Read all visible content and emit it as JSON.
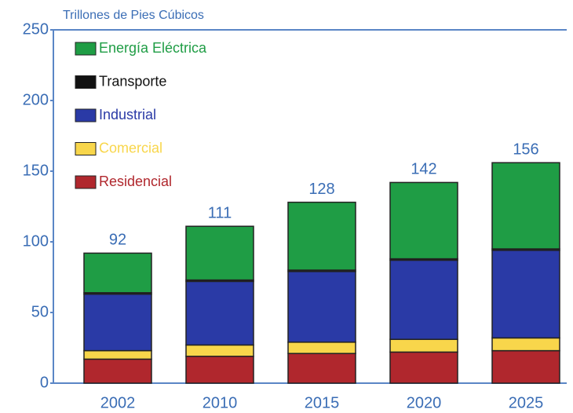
{
  "chart_data": {
    "type": "stacked_bar",
    "y_label": "Trillones de Pies Cúbicos",
    "categories": [
      "2002",
      "2010",
      "2015",
      "2020",
      "2025"
    ],
    "series": [
      {
        "name": "Residencial",
        "color": "#b0272d",
        "values": [
          17,
          19,
          21,
          22,
          23
        ]
      },
      {
        "name": "Comercial",
        "color": "#f8d64b",
        "values": [
          6,
          8,
          8,
          9,
          9
        ]
      },
      {
        "name": "Industrial",
        "color": "#2a3aa6",
        "values": [
          40,
          45,
          50,
          56,
          62
        ]
      },
      {
        "name": "Transporte",
        "color": "#111111",
        "values": [
          1,
          1,
          1,
          1,
          1
        ]
      },
      {
        "name": "Energía Eléctrica",
        "color": "#1f9d45",
        "values": [
          28,
          38,
          48,
          54,
          61
        ]
      }
    ],
    "totals": [
      92,
      111,
      128,
      142,
      156
    ],
    "ylim": [
      0,
      250
    ],
    "yticks": [
      0,
      50,
      100,
      150,
      200,
      250
    ]
  }
}
